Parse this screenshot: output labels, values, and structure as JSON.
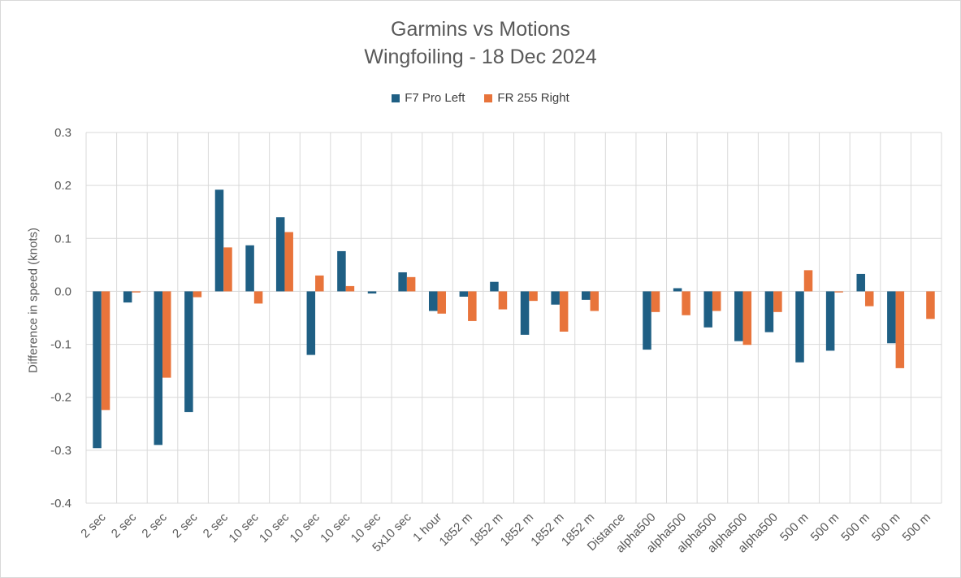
{
  "chart_data": {
    "type": "bar",
    "title": "Garmins vs Motions",
    "subtitle": "Wingfoiling - 18 Dec 2024",
    "xlabel": "",
    "ylabel": "Difference in speed (knots)",
    "ylim": [
      -0.4,
      0.3
    ],
    "yticks": [
      "0.3",
      "0.2",
      "0.1",
      "0.0",
      "-0.1",
      "-0.2",
      "-0.3",
      "-0.4"
    ],
    "ytick_values": [
      0.3,
      0.2,
      0.1,
      0.0,
      -0.1,
      -0.2,
      -0.3,
      -0.4
    ],
    "grid": true,
    "legend": "top",
    "categories": [
      "2 sec",
      "2 sec",
      "2 sec",
      "2 sec",
      "2 sec",
      "10 sec",
      "10 sec",
      "10 sec",
      "10 sec",
      "10 sec",
      "5x10 sec",
      "1 hour",
      "1852 m",
      "1852 m",
      "1852 m",
      "1852 m",
      "1852 m",
      "Distance",
      "alpha500",
      "alpha500",
      "alpha500",
      "alpha500",
      "alpha500",
      "500 m",
      "500 m",
      "500 m",
      "500 m",
      "500 m"
    ],
    "series": [
      {
        "name": "F7 Pro Left",
        "color": "#1f5f84",
        "values": [
          -0.296,
          -0.021,
          -0.29,
          -0.228,
          0.192,
          0.087,
          0.14,
          -0.12,
          0.076,
          -0.004,
          0.036,
          -0.037,
          -0.01,
          0.018,
          -0.082,
          -0.025,
          -0.016,
          null,
          -0.11,
          0.006,
          -0.068,
          -0.094,
          -0.077,
          -0.134,
          -0.112,
          0.033,
          -0.098,
          null
        ]
      },
      {
        "name": "FR 255 Right",
        "color": "#e8743b",
        "values": [
          -0.224,
          -0.002,
          -0.163,
          -0.011,
          0.083,
          -0.023,
          0.112,
          0.03,
          0.01,
          null,
          0.027,
          -0.042,
          -0.056,
          -0.034,
          -0.018,
          -0.076,
          -0.037,
          null,
          -0.039,
          -0.045,
          -0.037,
          -0.101,
          -0.039,
          0.04,
          -0.002,
          -0.028,
          -0.145,
          -0.052
        ]
      }
    ]
  }
}
